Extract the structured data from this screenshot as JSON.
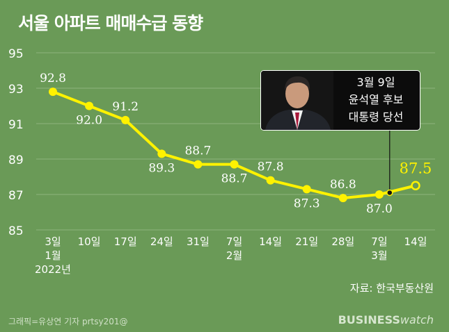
{
  "title": "서울 아파트 매매수급 동향",
  "source": "자료: 한국부동산원",
  "credit": "그래픽=유상연 기자 prtsy201@",
  "logo": {
    "part1": "BUSINESS",
    "part2": "watch"
  },
  "callout": {
    "lines": [
      "3월 9일",
      "윤석열 후보",
      "대통령 당선"
    ]
  },
  "colors": {
    "background": "#6a9a57",
    "line": "#fff200",
    "grid": "#8db47c",
    "text": "#ffffff"
  },
  "chart_data": {
    "type": "line",
    "title": "서울 아파트 매매수급 동향",
    "xlabel": "",
    "ylabel": "",
    "ylim": [
      85,
      95
    ],
    "y_ticks": [
      85,
      87,
      89,
      91,
      93,
      95
    ],
    "grid": true,
    "categories": [
      {
        "day": "3일",
        "month": "1월",
        "year": "2022년"
      },
      {
        "day": "10일"
      },
      {
        "day": "17일"
      },
      {
        "day": "24일"
      },
      {
        "day": "31일"
      },
      {
        "day": "7일",
        "month": "2월"
      },
      {
        "day": "14일"
      },
      {
        "day": "21일"
      },
      {
        "day": "28일"
      },
      {
        "day": "7일",
        "month": "3월"
      },
      {
        "day": "14일"
      }
    ],
    "values": [
      92.8,
      92.0,
      91.2,
      89.3,
      88.7,
      88.7,
      87.8,
      87.3,
      86.8,
      87.0,
      87.5
    ],
    "data_labels": [
      "92.8",
      "92.0",
      "91.2",
      "89.3",
      "88.7",
      "88.7",
      "87.8",
      "87.3",
      "86.8",
      "87.0",
      "87.5"
    ],
    "label_position": [
      "above",
      "below",
      "above",
      "below",
      "above",
      "below",
      "above",
      "below",
      "above",
      "below",
      "above"
    ],
    "highlight_index": 10,
    "event_marker": {
      "value": 87.1,
      "label": "3월 9일 윤석열 후보 대통령 당선"
    }
  }
}
